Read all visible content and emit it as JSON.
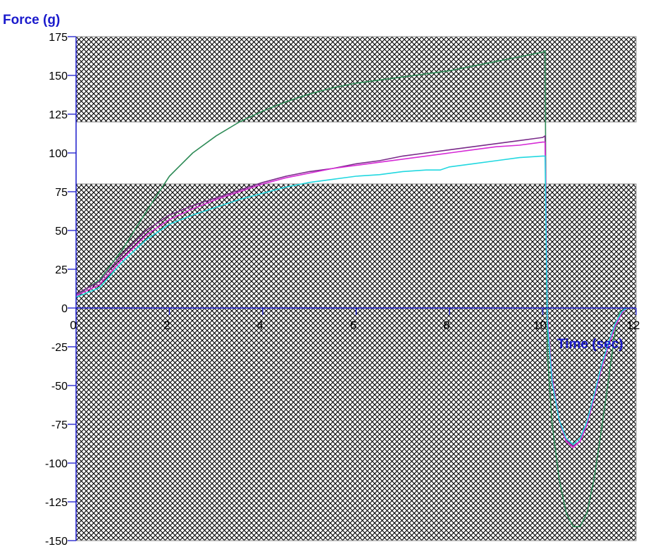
{
  "chart_data": {
    "type": "line",
    "xlabel": "Time (sec)",
    "ylabel": "Force (g)",
    "xlim": [
      0,
      12
    ],
    "ylim": [
      -150,
      175
    ],
    "xticks": [
      0,
      2,
      4,
      6,
      8,
      10,
      12
    ],
    "yticks": [
      175,
      150,
      125,
      100,
      75,
      50,
      25,
      0,
      -25,
      -50,
      -75,
      -100,
      -125,
      -150
    ],
    "axis_color": "#1a1acc",
    "hatched_regions": [
      {
        "y_from": 120,
        "y_to": 175
      },
      {
        "y_from": -150,
        "y_to": 80
      }
    ],
    "series": [
      {
        "color": "#2e8b57",
        "points": [
          [
            0,
            8
          ],
          [
            0.5,
            18
          ],
          [
            1,
            38
          ],
          [
            1.5,
            62
          ],
          [
            2,
            85
          ],
          [
            2.5,
            100
          ],
          [
            3,
            111
          ],
          [
            3.5,
            120
          ],
          [
            4,
            127
          ],
          [
            4.5,
            133
          ],
          [
            5,
            138
          ],
          [
            5.5,
            142
          ],
          [
            6,
            145
          ],
          [
            6.5,
            147
          ],
          [
            7,
            149
          ],
          [
            7.5,
            151
          ],
          [
            8,
            153
          ],
          [
            8.5,
            156
          ],
          [
            9,
            159
          ],
          [
            9.5,
            162
          ],
          [
            10,
            165
          ],
          [
            10.05,
            166
          ],
          [
            10.07,
            60
          ],
          [
            10.1,
            -30
          ],
          [
            10.2,
            -75
          ],
          [
            10.35,
            -110
          ],
          [
            10.5,
            -132
          ],
          [
            10.65,
            -141
          ],
          [
            10.8,
            -141
          ],
          [
            10.95,
            -132
          ],
          [
            11.1,
            -110
          ],
          [
            11.25,
            -80
          ],
          [
            11.4,
            -48
          ],
          [
            11.55,
            -15
          ],
          [
            11.65,
            -2
          ]
        ]
      },
      {
        "color": "#7a2a8a",
        "points": [
          [
            0,
            9
          ],
          [
            0.5,
            17
          ],
          [
            1,
            35
          ],
          [
            1.5,
            50
          ],
          [
            2,
            60
          ],
          [
            2.5,
            66
          ],
          [
            3,
            71
          ],
          [
            3.5,
            76
          ],
          [
            4,
            81
          ],
          [
            4.5,
            85
          ],
          [
            5,
            88
          ],
          [
            5.5,
            90
          ],
          [
            6,
            93
          ],
          [
            6.5,
            95
          ],
          [
            7,
            98
          ],
          [
            7.5,
            100
          ],
          [
            8,
            102
          ],
          [
            8.5,
            104
          ],
          [
            9,
            106
          ],
          [
            9.5,
            108
          ],
          [
            10,
            110
          ],
          [
            10.05,
            111
          ],
          [
            10.07,
            70
          ],
          [
            10.1,
            -10
          ],
          [
            10.2,
            -45
          ],
          [
            10.35,
            -72
          ],
          [
            10.5,
            -85
          ],
          [
            10.65,
            -89
          ],
          [
            10.8,
            -86
          ],
          [
            10.95,
            -75
          ],
          [
            11.1,
            -58
          ],
          [
            11.25,
            -40
          ],
          [
            11.4,
            -25
          ],
          [
            11.55,
            -12
          ],
          [
            11.7,
            -3
          ],
          [
            11.8,
            0
          ]
        ]
      },
      {
        "color": "#d62ad6",
        "points": [
          [
            0,
            8
          ],
          [
            0.5,
            15
          ],
          [
            1,
            32
          ],
          [
            1.5,
            47
          ],
          [
            2,
            57
          ],
          [
            2.5,
            64
          ],
          [
            3,
            70
          ],
          [
            3.5,
            75
          ],
          [
            4,
            80
          ],
          [
            4.5,
            84
          ],
          [
            5,
            87
          ],
          [
            5.5,
            90
          ],
          [
            6,
            92
          ],
          [
            6.5,
            94
          ],
          [
            7,
            96
          ],
          [
            7.5,
            98
          ],
          [
            8,
            100
          ],
          [
            8.5,
            102
          ],
          [
            9,
            104
          ],
          [
            9.5,
            105
          ],
          [
            10,
            107
          ],
          [
            10.05,
            107
          ],
          [
            10.07,
            60
          ],
          [
            10.1,
            -5
          ],
          [
            10.2,
            -45
          ],
          [
            10.35,
            -72
          ],
          [
            10.5,
            -86
          ],
          [
            10.65,
            -90
          ],
          [
            10.8,
            -86
          ],
          [
            10.95,
            -75
          ],
          [
            11.1,
            -58
          ],
          [
            11.25,
            -40
          ],
          [
            11.4,
            -25
          ],
          [
            11.55,
            -12
          ],
          [
            11.7,
            -3
          ],
          [
            11.8,
            0
          ]
        ]
      },
      {
        "color": "#22d8e0",
        "points": [
          [
            0,
            7
          ],
          [
            0.5,
            13
          ],
          [
            1,
            30
          ],
          [
            1.5,
            44
          ],
          [
            2,
            54
          ],
          [
            2.5,
            60
          ],
          [
            3,
            65
          ],
          [
            3.5,
            70
          ],
          [
            4,
            74
          ],
          [
            4.5,
            78
          ],
          [
            5,
            81
          ],
          [
            5.5,
            83
          ],
          [
            6,
            85
          ],
          [
            6.5,
            86
          ],
          [
            7,
            88
          ],
          [
            7.5,
            89
          ],
          [
            7.8,
            89
          ],
          [
            8,
            91
          ],
          [
            8.5,
            93
          ],
          [
            9,
            95
          ],
          [
            9.5,
            97
          ],
          [
            10,
            98
          ],
          [
            10.05,
            98
          ],
          [
            10.07,
            50
          ],
          [
            10.1,
            -10
          ],
          [
            10.2,
            -48
          ],
          [
            10.35,
            -72
          ],
          [
            10.5,
            -84
          ],
          [
            10.65,
            -88
          ],
          [
            10.8,
            -84
          ],
          [
            10.95,
            -73
          ],
          [
            11.1,
            -56
          ],
          [
            11.25,
            -38
          ],
          [
            11.4,
            -23
          ],
          [
            11.55,
            -10
          ],
          [
            11.7,
            -2
          ],
          [
            11.8,
            0
          ]
        ]
      }
    ]
  }
}
